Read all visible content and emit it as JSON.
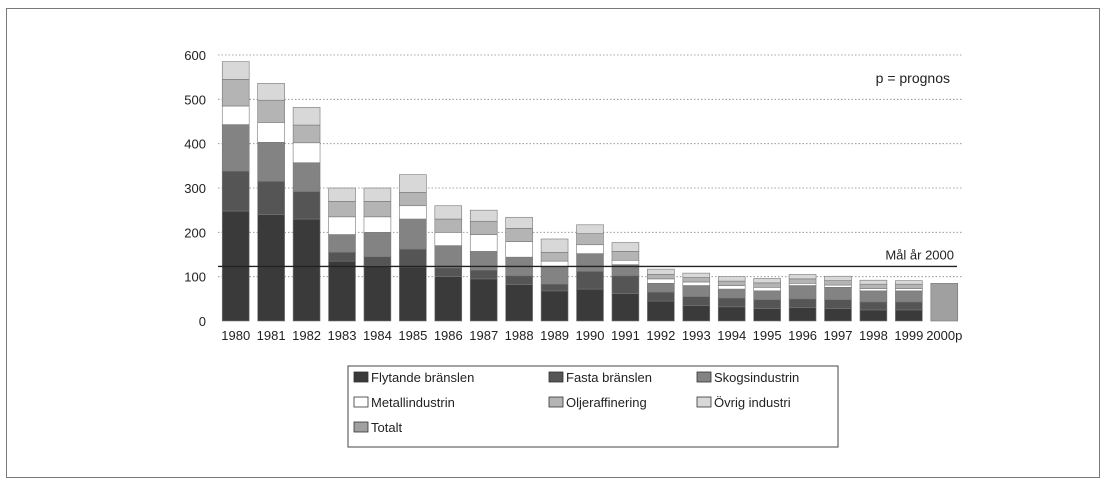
{
  "chart_data": {
    "type": "bar",
    "stacked": true,
    "categories": [
      "1980",
      "1981",
      "1982",
      "1983",
      "1984",
      "1985",
      "1986",
      "1987",
      "1988",
      "1989",
      "1990",
      "1991",
      "1992",
      "1993",
      "1994",
      "1995",
      "1996",
      "1997",
      "1998",
      "1999",
      "2000p"
    ],
    "ylim": [
      0,
      600
    ],
    "yticks": [
      0,
      100,
      200,
      300,
      400,
      500,
      600
    ],
    "grid": "horizontal dotted",
    "series": [
      {
        "name": "Flytande bränslen",
        "color": "#3a3a3a",
        "values": [
          248,
          240,
          230,
          135,
          125,
          122,
          100,
          95,
          82,
          68,
          72,
          62,
          45,
          35,
          32,
          28,
          30,
          28,
          25,
          25,
          null
        ]
      },
      {
        "name": "Fasta bränslen",
        "color": "#555555",
        "values": [
          90,
          75,
          62,
          20,
          20,
          40,
          20,
          20,
          20,
          15,
          40,
          40,
          20,
          20,
          20,
          20,
          20,
          20,
          18,
          18,
          null
        ]
      },
      {
        "name": "Skogsindustrin",
        "color": "#838383",
        "values": [
          105,
          88,
          65,
          40,
          55,
          68,
          50,
          42,
          42,
          40,
          40,
          25,
          20,
          25,
          20,
          20,
          30,
          28,
          25,
          25,
          null
        ]
      },
      {
        "name": "Metallindustrin",
        "color": "#ffffff",
        "values": [
          42,
          45,
          45,
          40,
          35,
          30,
          30,
          38,
          35,
          12,
          20,
          10,
          10,
          8,
          8,
          8,
          5,
          5,
          5,
          5,
          null
        ]
      },
      {
        "name": "Oljeraffinering",
        "color": "#b4b4b4",
        "values": [
          60,
          50,
          40,
          35,
          35,
          30,
          30,
          30,
          30,
          20,
          25,
          20,
          10,
          10,
          10,
          10,
          10,
          10,
          10,
          10,
          null
        ]
      },
      {
        "name": "Övrig industri",
        "color": "#d8d8d8",
        "values": [
          40,
          38,
          40,
          30,
          30,
          40,
          30,
          25,
          25,
          30,
          20,
          20,
          12,
          10,
          10,
          10,
          10,
          10,
          9,
          8,
          null
        ]
      },
      {
        "name": "Totalt",
        "color": "#a0a0a0",
        "values": [
          null,
          null,
          null,
          null,
          null,
          null,
          null,
          null,
          null,
          null,
          null,
          null,
          null,
          null,
          null,
          null,
          null,
          null,
          null,
          null,
          85
        ]
      }
    ],
    "target_line": {
      "label": "Mål år 2000",
      "value": 123
    },
    "annotation": "p = prognos",
    "legend": "bottom-center"
  }
}
